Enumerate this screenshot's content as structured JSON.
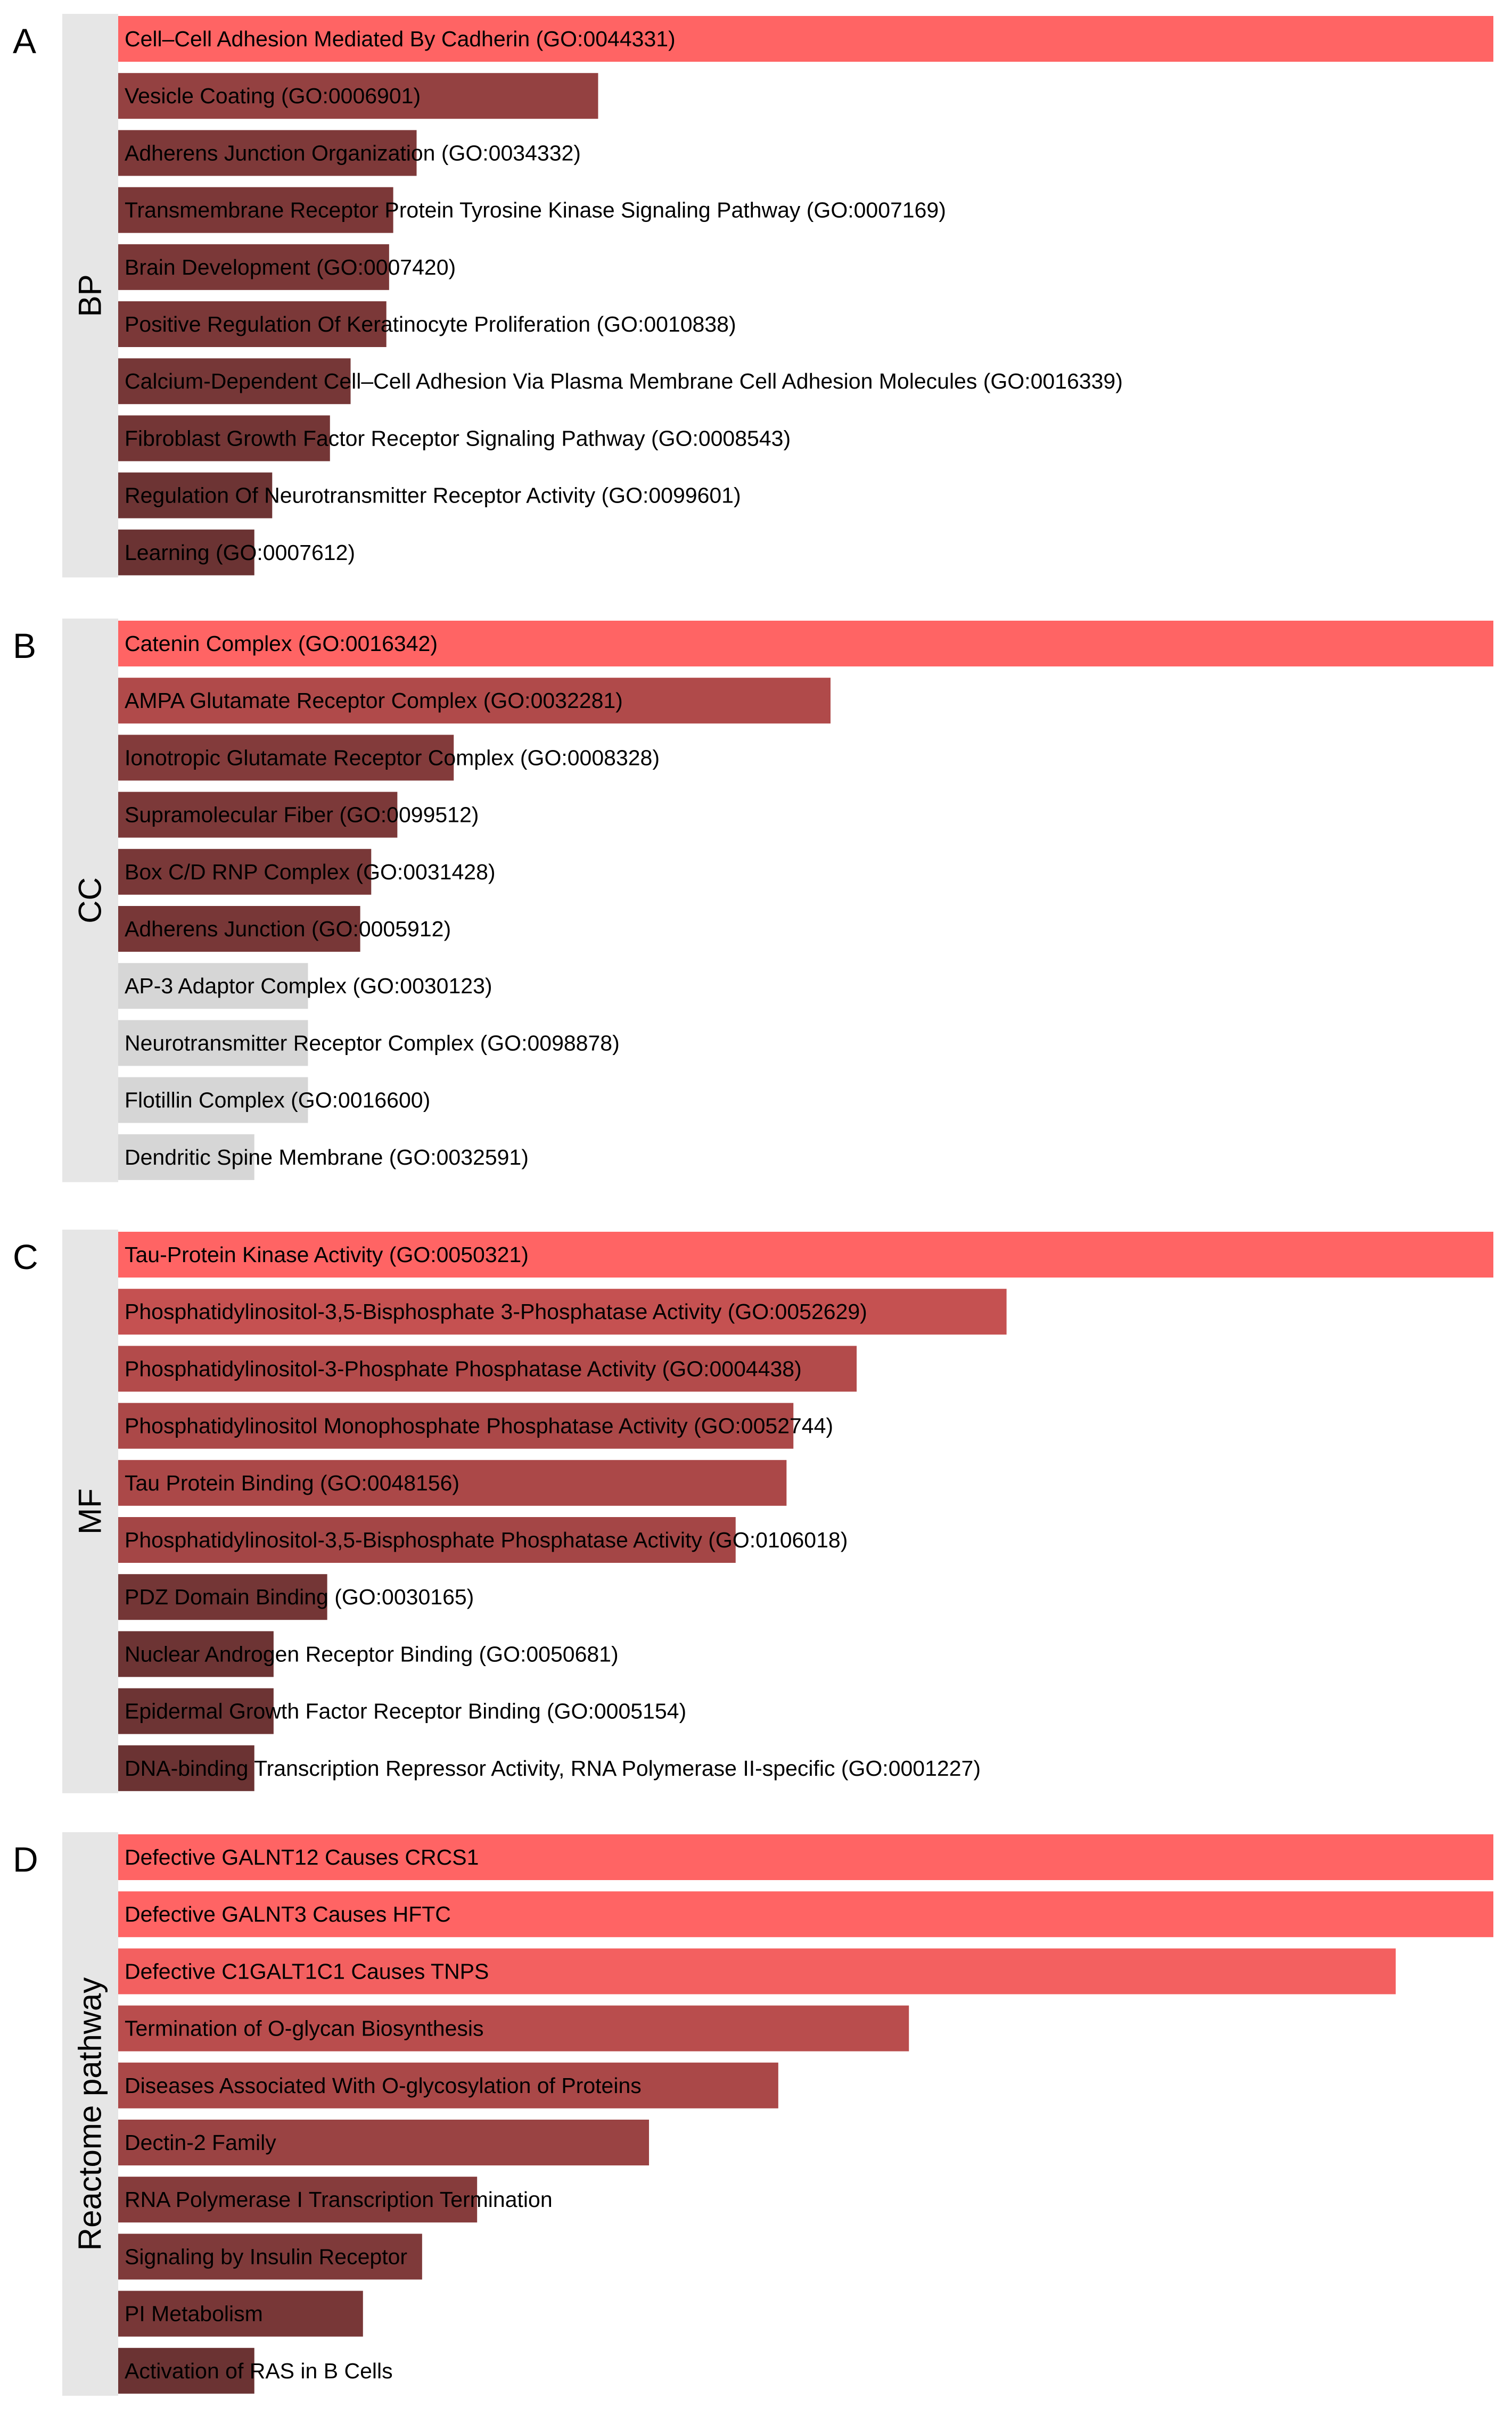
{
  "colors": {
    "strip_background": "#e6e6e6",
    "most_significant": "#ff6464",
    "least_significant": "#6b3333",
    "not_significant": "#d6d6d6"
  },
  "chart_data": [
    {
      "type": "bar",
      "panel": "A",
      "strip_label": "BP",
      "categories": [
        "Cell–Cell Adhesion Mediated By Cadherin (GO:0044331)",
        "Vesicle Coating (GO:0006901)",
        "Adherens Junction Organization (GO:0034332)",
        "Transmembrane Receptor Protein Tyrosine Kinase Signaling Pathway (GO:0007169)",
        "Brain Development (GO:0007420)",
        "Positive Regulation Of Keratinocyte Proliferation (GO:0010838)",
        "Calcium-Dependent Cell–Cell Adhesion Via Plasma Membrane Cell Adhesion Molecules (GO:0016339)",
        "Fibroblast Growth Factor Receptor Signaling Pathway (GO:0008543)",
        "Regulation Of Neurotransmitter Receptor Activity (GO:0099601)",
        "Learning (GO:0007612)"
      ],
      "values": [
        1.0,
        0.349,
        0.217,
        0.2,
        0.197,
        0.195,
        0.169,
        0.154,
        0.112,
        0.099
      ],
      "significant": [
        true,
        true,
        true,
        true,
        true,
        true,
        true,
        true,
        true,
        true
      ]
    },
    {
      "type": "bar",
      "panel": "B",
      "strip_label": "CC",
      "categories": [
        "Catenin Complex (GO:0016342)",
        "AMPA Glutamate Receptor Complex (GO:0032281)",
        "Ionotropic Glutamate Receptor Complex (GO:0008328)",
        "Supramolecular Fiber (GO:0099512)",
        "Box C/D RNP Complex (GO:0031428)",
        "Adherens Junction (GO:0005912)",
        "AP-3 Adaptor Complex (GO:0030123)",
        "Neurotransmitter Receptor Complex (GO:0098878)",
        "Flotillin Complex (GO:0016600)",
        "Dendritic Spine Membrane (GO:0032591)"
      ],
      "values": [
        1.0,
        0.518,
        0.244,
        0.203,
        0.184,
        0.176,
        0.138,
        0.138,
        0.138,
        0.099
      ],
      "significant": [
        true,
        true,
        true,
        true,
        true,
        true,
        false,
        false,
        false,
        false
      ]
    },
    {
      "type": "bar",
      "panel": "C",
      "strip_label": "MF",
      "categories": [
        "Tau-Protein Kinase Activity (GO:0050321)",
        "Phosphatidylinositol-3,5-Bisphosphate 3-Phosphatase Activity (GO:0052629)",
        "Phosphatidylinositol-3-Phosphate Phosphatase Activity (GO:0004438)",
        "Phosphatidylinositol Monophosphate Phosphatase Activity (GO:0052744)",
        "Tau Protein Binding (GO:0048156)",
        "Phosphatidylinositol-3,5-Bisphosphate Phosphatase Activity (GO:0106018)",
        "PDZ Domain Binding (GO:0030165)",
        "Nuclear Androgen Receptor Binding (GO:0050681)",
        "Epidermal Growth Factor Receptor Binding (GO:0005154)",
        "DNA-binding Transcription Repressor Activity, RNA Polymerase II-specific (GO:0001227)"
      ],
      "values": [
        1.0,
        0.646,
        0.537,
        0.491,
        0.486,
        0.449,
        0.152,
        0.113,
        0.113,
        0.099
      ],
      "significant": [
        true,
        true,
        true,
        true,
        true,
        true,
        true,
        true,
        true,
        true
      ]
    },
    {
      "type": "bar",
      "panel": "D",
      "strip_label": "Reactome pathway",
      "categories": [
        "Defective GALNT12 Causes CRCS1",
        "Defective GALNT3 Causes HFTC",
        "Defective C1GALT1C1 Causes TNPS",
        "Termination of O-glycan Biosynthesis",
        "Diseases Associated With O-glycosylation of Proteins",
        "Dectin-2 Family",
        "RNA Polymerase I Transcription Termination",
        "Signaling by Insulin Receptor",
        "PI Metabolism",
        "Activation of RAS in B Cells"
      ],
      "values": [
        1.0,
        1.0,
        0.929,
        0.575,
        0.48,
        0.386,
        0.261,
        0.221,
        0.178,
        0.099
      ],
      "significant": [
        true,
        true,
        true,
        true,
        true,
        true,
        true,
        true,
        true,
        true
      ]
    }
  ]
}
